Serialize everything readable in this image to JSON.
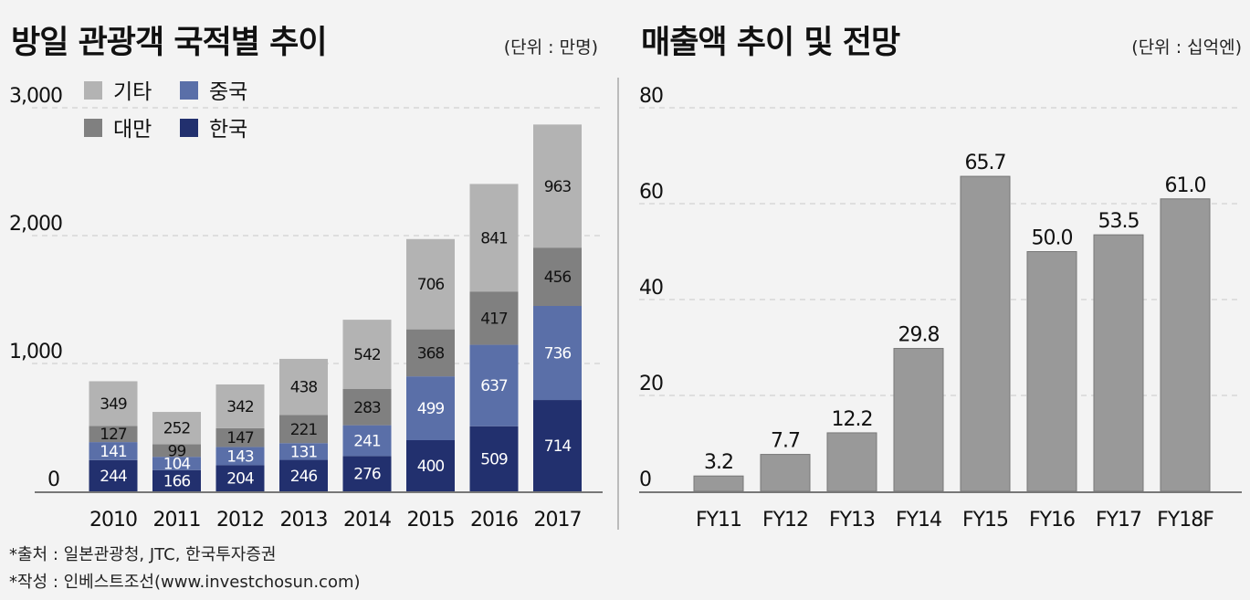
{
  "chart_data": [
    {
      "type": "bar",
      "stacked": true,
      "title": "방일 관광객 국적별 추이",
      "unit": "(단위 : 만명)",
      "categories": [
        "2010",
        "2011",
        "2012",
        "2013",
        "2014",
        "2015",
        "2016",
        "2017"
      ],
      "series": [
        {
          "name": "한국",
          "color": "#22306e",
          "values": [
            244,
            166,
            204,
            246,
            276,
            400,
            509,
            714
          ]
        },
        {
          "name": "중국",
          "color": "#5a6fa8",
          "values": [
            141,
            104,
            143,
            131,
            241,
            499,
            637,
            736
          ]
        },
        {
          "name": "대만",
          "color": "#808080",
          "values": [
            127,
            99,
            147,
            221,
            283,
            368,
            417,
            456
          ]
        },
        {
          "name": "기타",
          "color": "#b3b3b3",
          "values": [
            349,
            252,
            342,
            438,
            542,
            706,
            841,
            963
          ]
        }
      ],
      "legend_order": [
        "기타",
        "중국",
        "대만",
        "한국"
      ],
      "legend_position": "top-left",
      "ylim": [
        0,
        3000
      ],
      "yticks": [
        "0",
        "1,000",
        "2,000",
        "3,000"
      ],
      "grid": "dashed horizontal"
    },
    {
      "type": "bar",
      "title": "매출액 추이 및 전망",
      "unit": "(단위 : 십억엔)",
      "categories": [
        "FY11",
        "FY12",
        "FY13",
        "FY14",
        "FY15",
        "FY16",
        "FY17",
        "FY18F"
      ],
      "values": [
        3.2,
        7.7,
        12.2,
        29.8,
        65.7,
        50.0,
        53.5,
        61.0
      ],
      "value_labels": [
        "3.2",
        "7.7",
        "12.2",
        "29.8",
        "65.7",
        "50.0",
        "53.5",
        "61.0"
      ],
      "color": "#999999",
      "ylim": [
        0,
        80
      ],
      "yticks": [
        "0",
        "20",
        "40",
        "60",
        "80"
      ],
      "grid": "dashed horizontal"
    }
  ],
  "notes": [
    "*출처 : 일본관광청, JTC, 한국투자증권",
    "*작성 : 인베스트조선(www.investchosun.com)"
  ]
}
